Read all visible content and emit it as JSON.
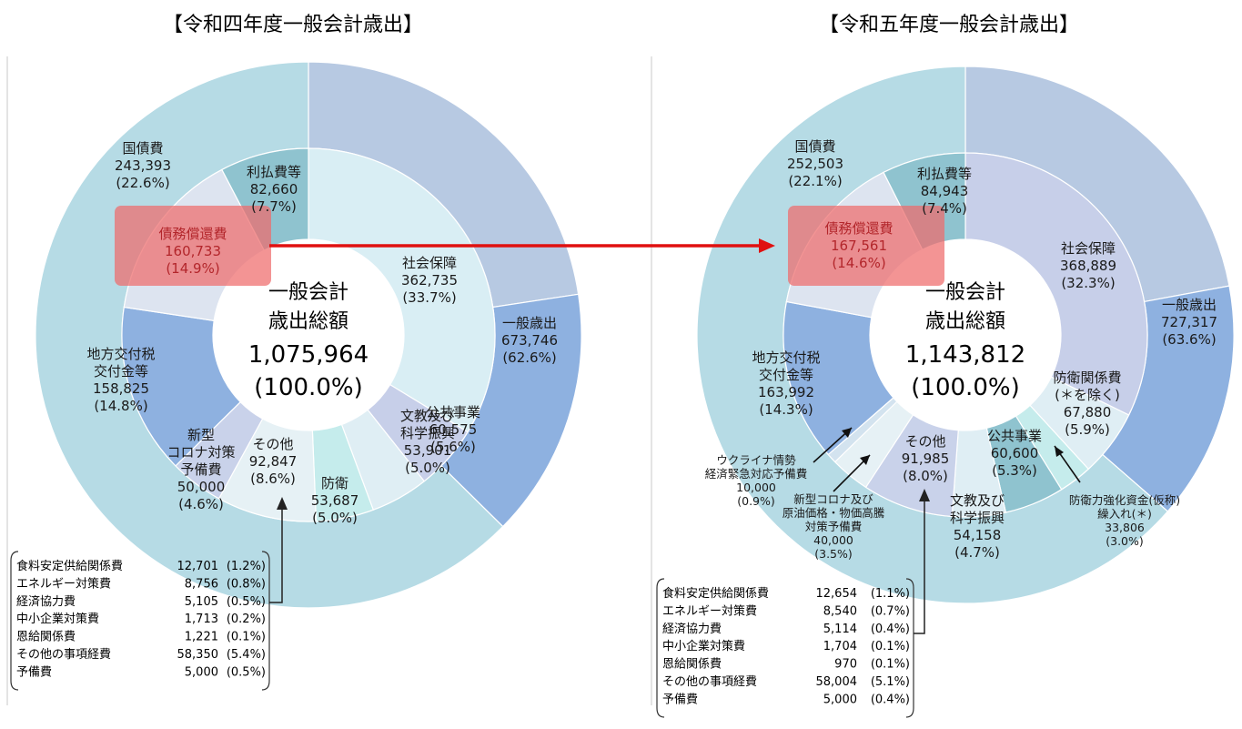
{
  "chart_data": [
    {
      "type": "pie",
      "title": "【令和四年度一般会計歳出】",
      "unit_note": "",
      "center": {
        "line1": "一般会計",
        "line2": "歳出総額",
        "total": "1,075,964",
        "percent": "(100.0%)"
      },
      "outer_ring": [
        {
          "label": "国債費",
          "value": 243393,
          "percent": "22.6%",
          "color": "#b7c9e2"
        },
        {
          "label": "地方交付税交付金等",
          "value": 158825,
          "percent": "14.8%",
          "color": "#8eb1e0"
        },
        {
          "label": "一般歳出",
          "value": 673746,
          "percent": "62.6%",
          "color": "#b6dbe5"
        }
      ],
      "inner_ring": [
        {
          "label": "社会保障",
          "value": 362735,
          "percent": "33.7%",
          "color": "#d9eef4"
        },
        {
          "label": "公共事業",
          "value": 60575,
          "percent": "5.6%",
          "color": "#c7cfe9"
        },
        {
          "label": "文教及び科学振興",
          "value": 53901,
          "percent": "5.0%",
          "color": "#dfeef4"
        },
        {
          "label": "防衛",
          "value": 53687,
          "percent": "5.0%",
          "color": "#c5ecec"
        },
        {
          "label": "その他",
          "value": 92847,
          "percent": "8.6%",
          "color": "#e6f1f5"
        },
        {
          "label": "新型コロナ対策予備費",
          "value": 50000,
          "percent": "4.6%",
          "color": "#c9d2ea"
        },
        {
          "label": "地方交付税交付金等",
          "value": 158825,
          "percent": "14.8%",
          "color": "#8eb1e0"
        },
        {
          "label": "債務償還費",
          "value": 160733,
          "percent": "14.9%",
          "color": "#dde4f0"
        },
        {
          "label": "利払費等",
          "value": 82660,
          "percent": "7.7%",
          "color": "#8fc3cf"
        }
      ],
      "text_labels": [
        {
          "lines": [
            "国債費",
            "243,393",
            "(22.6%)"
          ]
        },
        {
          "lines": [
            "利払費等",
            "82,660",
            "(7.7%)"
          ]
        },
        {
          "lines": [
            "債務償還費",
            "160,733",
            "(14.9%)"
          ],
          "highlight": true
        },
        {
          "lines": [
            "社会保障",
            "362,735",
            "(33.7%)"
          ]
        },
        {
          "lines": [
            "一般歳出",
            "673,746",
            "(62.6%)"
          ]
        },
        {
          "lines": [
            "地方交付税",
            "交付金等",
            "158,825",
            "(14.8%)"
          ]
        },
        {
          "lines": [
            "文教及び",
            "科学振興",
            "53,901",
            "(5.0%)"
          ]
        },
        {
          "lines": [
            "公共事業",
            "60,575",
            "(5.6%)"
          ]
        },
        {
          "lines": [
            "新型",
            "コロナ対策",
            "予備費",
            "50,000",
            "(4.6%)"
          ]
        },
        {
          "lines": [
            "その他",
            "92,847",
            "(8.6%)"
          ]
        },
        {
          "lines": [
            "防衛",
            "53,687",
            "(5.0%)"
          ]
        }
      ],
      "other_breakdown": [
        {
          "name": "食料安定供給関係費",
          "value": "12,701",
          "percent": "(1.2%)"
        },
        {
          "name": "エネルギー対策費",
          "value": "8,756",
          "percent": "(0.8%)"
        },
        {
          "name": "経済協力費",
          "value": "5,105",
          "percent": "(0.5%)"
        },
        {
          "name": "中小企業対策費",
          "value": "1,713",
          "percent": "(0.2%)"
        },
        {
          "name": "恩給関係費",
          "value": "1,221",
          "percent": "(0.1%)"
        },
        {
          "name": "その他の事項経費",
          "value": "58,350",
          "percent": "(5.4%)"
        },
        {
          "name": "予備費",
          "value": "5,000",
          "percent": "(0.5%)"
        }
      ]
    },
    {
      "type": "pie",
      "title": "【令和五年度一般会計歳出】",
      "center": {
        "line1": "一般会計",
        "line2": "歳出総額",
        "total": "1,143,812",
        "percent": "(100.0%)"
      },
      "outer_ring": [
        {
          "label": "国債費",
          "value": 252503,
          "percent": "22.1%",
          "color": "#b7c9e2"
        },
        {
          "label": "地方交付税交付金等",
          "value": 163992,
          "percent": "14.3%",
          "color": "#8eb1e0"
        },
        {
          "label": "一般歳出",
          "value": 727317,
          "percent": "63.6%",
          "color": "#b6dbe5"
        }
      ],
      "inner_ring": [
        {
          "label": "社会保障",
          "value": 368889,
          "percent": "32.3%",
          "color": "#c7cfe9"
        },
        {
          "label": "防衛関係費(＊を除く)",
          "value": 67880,
          "percent": "5.9%",
          "color": "#dfeef4"
        },
        {
          "label": "防衛力強化資金(仮称)繰入れ(＊)",
          "value": 33806,
          "percent": "3.0%",
          "color": "#c5ecec"
        },
        {
          "label": "公共事業",
          "value": 60600,
          "percent": "5.3%",
          "color": "#8fc3cf"
        },
        {
          "label": "文教及び科学振興",
          "value": 54158,
          "percent": "4.7%",
          "color": "#dfeef4"
        },
        {
          "label": "その他",
          "value": 91985,
          "percent": "8.0%",
          "color": "#c9d2ea"
        },
        {
          "label": "新型コロナ及び原油価格・物価高騰対策予備費",
          "value": 40000,
          "percent": "3.5%",
          "color": "#e6f1f5"
        },
        {
          "label": "ウクライナ情勢経済緊急対応予備費",
          "value": 10000,
          "percent": "0.9%",
          "color": "#d3e3ef"
        },
        {
          "label": "地方交付税交付金等",
          "value": 163992,
          "percent": "14.3%",
          "color": "#8eb1e0"
        },
        {
          "label": "債務償還費",
          "value": 167561,
          "percent": "14.6%",
          "color": "#dde4f0"
        },
        {
          "label": "利払費等",
          "value": 84943,
          "percent": "7.4%",
          "color": "#8fc3cf"
        }
      ],
      "text_labels": [
        {
          "lines": [
            "国債費",
            "252,503",
            "(22.1%)"
          ]
        },
        {
          "lines": [
            "利払費等",
            "84,943",
            "(7.4%)"
          ]
        },
        {
          "lines": [
            "債務償還費",
            "167,561",
            "(14.6%)"
          ],
          "highlight": true
        },
        {
          "lines": [
            "社会保障",
            "368,889",
            "(32.3%)"
          ]
        },
        {
          "lines": [
            "一般歳出",
            "727,317",
            "(63.6%)"
          ]
        },
        {
          "lines": [
            "地方交付税",
            "交付金等",
            "163,992",
            "(14.3%)"
          ]
        },
        {
          "lines": [
            "防衛関係費",
            "(＊を除く)",
            "67,880",
            "(5.9%)"
          ]
        },
        {
          "lines": [
            "公共事業",
            "60,600",
            "(5.3%)"
          ]
        },
        {
          "lines": [
            "その他",
            "91,985",
            "(8.0%)"
          ]
        },
        {
          "lines": [
            "ウクライナ情勢",
            "経済緊急対応予備費",
            "10,000",
            "(0.9%)"
          ],
          "small": true
        },
        {
          "lines": [
            "新型コロナ及び",
            "原油価格・物価高騰",
            "対策予備費",
            "40,000",
            "(3.5%)"
          ],
          "small": true
        },
        {
          "lines": [
            "文教及び",
            "科学振興",
            "54,158",
            "(4.7%)"
          ]
        },
        {
          "lines": [
            "防衛力強化資金(仮称)",
            "繰入れ(＊)",
            "33,806",
            "(3.0%)"
          ],
          "small": true
        }
      ],
      "other_breakdown": [
        {
          "name": "食料安定供給関係費",
          "value": "12,654",
          "percent": "(1.1%)"
        },
        {
          "name": "エネルギー対策費",
          "value": "8,540",
          "percent": "(0.7%)"
        },
        {
          "name": "経済協力費",
          "value": "5,114",
          "percent": "(0.4%)"
        },
        {
          "name": "中小企業対策費",
          "value": "1,704",
          "percent": "(0.1%)"
        },
        {
          "name": "恩給関係費",
          "value": "970",
          "percent": "(0.1%)"
        },
        {
          "name": "その他の事項経費",
          "value": "58,004",
          "percent": "(5.1%)"
        },
        {
          "name": "予備費",
          "value": "5,000",
          "percent": "(0.4%)"
        }
      ]
    }
  ],
  "colors": {
    "highlight_fill": "#ef6b6b",
    "arrow": "#e01010",
    "text": "#1a1a1a",
    "highlight_text": "#b3262b"
  }
}
